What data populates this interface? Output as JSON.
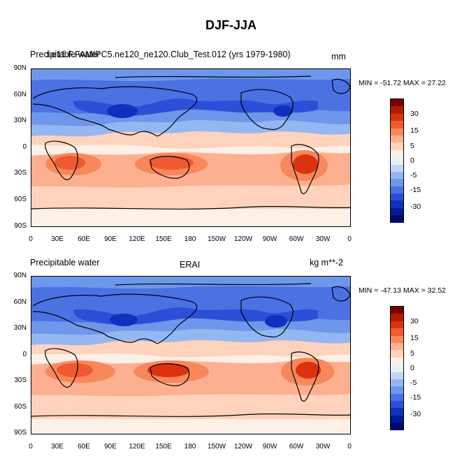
{
  "title": "DJF-JJA",
  "panels": [
    {
      "left_label": "Precipitable water",
      "center_label": "f.e11.F.FAMIPC5.ne120_ne120.Club_Test.012 (yrs 1979-1980)",
      "right_label": "mm",
      "minmax": "MIN = -51.72 MAX =  27.22"
    },
    {
      "left_label": "Precipitable water",
      "center_label": "ERAI",
      "right_label": "kg m**-2",
      "minmax": "MIN = -47.13 MAX =  32.52"
    }
  ],
  "lat_ticks": [
    "90N",
    "60N",
    "30N",
    "0",
    "30S",
    "60S",
    "90S"
  ],
  "lon_ticks": [
    "0",
    "30E",
    "60E",
    "90E",
    "120E",
    "150E",
    "180",
    "150W",
    "120W",
    "90W",
    "60W",
    "30W",
    "0"
  ],
  "colorbar": {
    "labels": [
      "30",
      "15",
      "5",
      "0",
      "-5",
      "-15",
      "-30"
    ],
    "colors": [
      "#7a0000",
      "#b51a00",
      "#dc3210",
      "#f05a30",
      "#f8875c",
      "#fcb08f",
      "#fdd3bd",
      "#fdf0e6",
      "#e8f0fb",
      "#c2d6f6",
      "#95b7f1",
      "#6e96ea",
      "#4a72e3",
      "#2b4fd7",
      "#1230c0",
      "#001a99",
      "#000a6e"
    ]
  },
  "colors": {
    "land_outline": "#000000",
    "ocean_tropic_red": "#f06a3c",
    "nh_blue": "#4a72e3"
  }
}
